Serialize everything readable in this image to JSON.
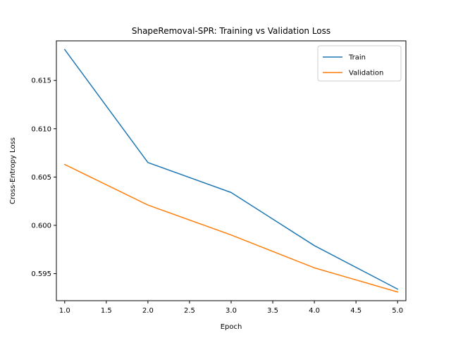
{
  "chart_data": {
    "type": "line",
    "title": "ShapeRemoval-SPR: Training vs Validation Loss",
    "xlabel": "Epoch",
    "ylabel": "Cross-Entropy Loss",
    "xlim": [
      0.9,
      5.1
    ],
    "ylim": [
      0.5922,
      0.6191
    ],
    "xticks": [
      1.0,
      1.5,
      2.0,
      2.5,
      3.0,
      3.5,
      4.0,
      4.5,
      5.0
    ],
    "xtick_labels": [
      "1.0",
      "1.5",
      "2.0",
      "2.5",
      "3.0",
      "3.5",
      "4.0",
      "4.5",
      "5.0"
    ],
    "yticks": [
      0.595,
      0.6,
      0.605,
      0.61,
      0.615
    ],
    "ytick_labels": [
      "0.595",
      "0.600",
      "0.605",
      "0.610",
      "0.615"
    ],
    "grid": false,
    "legend_position": "top-right",
    "x": [
      1,
      2,
      3,
      4,
      5
    ],
    "series": [
      {
        "name": "Train",
        "color": "#1f77b4",
        "values": [
          0.6182,
          0.6065,
          0.6034,
          0.5979,
          0.5934
        ]
      },
      {
        "name": "Validation",
        "color": "#ff7f0e",
        "values": [
          0.6063,
          0.6021,
          0.599,
          0.5956,
          0.5931
        ]
      }
    ]
  }
}
